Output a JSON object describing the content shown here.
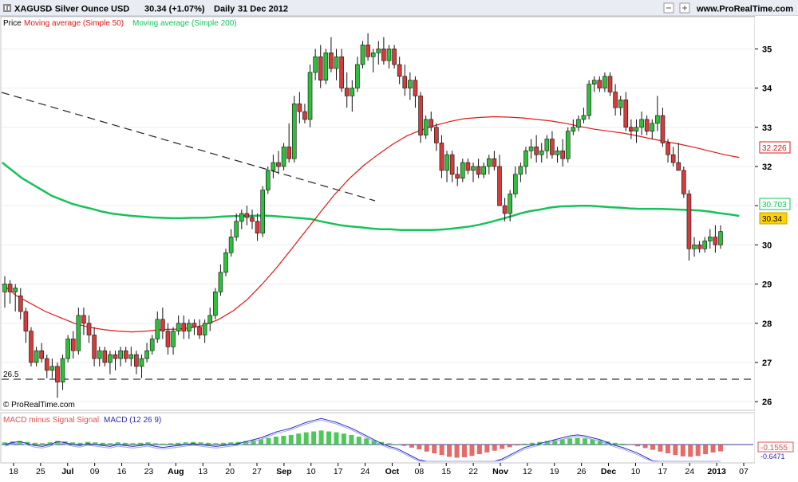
{
  "header": {
    "symbol": "XAGUSD",
    "description": "- Silver Ounce USD",
    "last_change": "30.34 (+1.07%)",
    "period": "Daily",
    "date": "31 Dec 2012",
    "site": "www.ProRealTime.com"
  },
  "icons": [
    "zoom-icon",
    "minimize-icon",
    "maximize-icon",
    "close-icon"
  ],
  "legend": {
    "price": "Price",
    "ma50": "Moving average (Simple 50)",
    "ma200": "Moving average (Simple 200)"
  },
  "copyright": "© ProRealTime.com",
  "colors": {
    "ma50": "#e01818",
    "ma200": "#16c25a",
    "up_candle": "#2fbf3a",
    "down_candle": "#d43b3b",
    "macd_line": "#2a2ab8",
    "macd_hist_pos": "#2fbf3a",
    "macd_hist_neg": "#e05050",
    "price_tag": "#ffd200"
  },
  "price_labels": {
    "ma50": "32.226",
    "ma200": "30.703",
    "last": "30.34"
  },
  "macd": {
    "legend_hist": "MACD minus Signal Signal",
    "legend_macd": "MACD (12 26 9)",
    "value_hist": "-0.1555",
    "value_macd": "-0.6471"
  },
  "support_label": "26.5",
  "chart_data": {
    "type": "candlestick",
    "y_axis_ticks": [
      "35",
      "34",
      "33",
      "32",
      "31",
      "30",
      "29",
      "28",
      "27",
      "26"
    ],
    "ylim": [
      25.8,
      35.8
    ],
    "x_axis_labels": [
      "18",
      "25",
      "Jul",
      "09",
      "16",
      "23",
      "Aug",
      "13",
      "20",
      "27",
      "Sep",
      "10",
      "17",
      "24",
      "Oct",
      "08",
      "15",
      "22",
      "Nov",
      "12",
      "19",
      "26",
      "Dec",
      "10",
      "17",
      "24",
      "2013",
      "07"
    ],
    "x_axis_bold": [
      "Jul",
      "Aug",
      "Sep",
      "Oct",
      "Nov",
      "Dec",
      "2013"
    ],
    "candles": [
      {
        "o": 28.8,
        "h": 29.2,
        "l": 28.4,
        "c": 29.0
      },
      {
        "o": 29.0,
        "h": 29.1,
        "l": 28.5,
        "c": 28.8
      },
      {
        "o": 28.8,
        "h": 29.0,
        "l": 28.3,
        "c": 28.9
      },
      {
        "o": 28.7,
        "h": 28.9,
        "l": 28.1,
        "c": 28.3
      },
      {
        "o": 28.3,
        "h": 28.4,
        "l": 27.5,
        "c": 27.8
      },
      {
        "o": 27.8,
        "h": 27.9,
        "l": 26.9,
        "c": 27.0
      },
      {
        "o": 27.0,
        "h": 27.4,
        "l": 26.9,
        "c": 27.3
      },
      {
        "o": 27.3,
        "h": 27.5,
        "l": 27.0,
        "c": 27.1
      },
      {
        "o": 27.1,
        "h": 27.2,
        "l": 26.6,
        "c": 26.8
      },
      {
        "o": 26.8,
        "h": 27.1,
        "l": 26.6,
        "c": 26.9
      },
      {
        "o": 26.9,
        "h": 27.0,
        "l": 26.1,
        "c": 26.5
      },
      {
        "o": 26.5,
        "h": 27.2,
        "l": 26.3,
        "c": 27.1
      },
      {
        "o": 27.1,
        "h": 27.7,
        "l": 27.0,
        "c": 27.6
      },
      {
        "o": 27.6,
        "h": 27.8,
        "l": 27.1,
        "c": 27.3
      },
      {
        "o": 27.3,
        "h": 28.4,
        "l": 27.2,
        "c": 28.2
      },
      {
        "o": 28.2,
        "h": 28.4,
        "l": 27.7,
        "c": 28.0
      },
      {
        "o": 28.0,
        "h": 28.2,
        "l": 27.5,
        "c": 27.7
      },
      {
        "o": 27.7,
        "h": 27.9,
        "l": 26.9,
        "c": 27.1
      },
      {
        "o": 27.1,
        "h": 27.4,
        "l": 26.9,
        "c": 27.3
      },
      {
        "o": 27.3,
        "h": 27.4,
        "l": 26.9,
        "c": 27.0
      },
      {
        "o": 27.0,
        "h": 27.3,
        "l": 26.7,
        "c": 27.2
      },
      {
        "o": 27.2,
        "h": 27.3,
        "l": 26.8,
        "c": 27.1
      },
      {
        "o": 27.1,
        "h": 27.4,
        "l": 26.9,
        "c": 27.3
      },
      {
        "o": 27.3,
        "h": 27.4,
        "l": 27.0,
        "c": 27.1
      },
      {
        "o": 27.1,
        "h": 27.4,
        "l": 26.9,
        "c": 27.2
      },
      {
        "o": 27.2,
        "h": 27.3,
        "l": 26.7,
        "c": 26.9
      },
      {
        "o": 26.9,
        "h": 27.2,
        "l": 26.6,
        "c": 27.1
      },
      {
        "o": 27.1,
        "h": 27.5,
        "l": 27.0,
        "c": 27.3
      },
      {
        "o": 27.3,
        "h": 27.7,
        "l": 27.2,
        "c": 27.6
      },
      {
        "o": 27.6,
        "h": 28.3,
        "l": 27.5,
        "c": 28.1
      },
      {
        "o": 28.1,
        "h": 28.4,
        "l": 27.6,
        "c": 27.8
      },
      {
        "o": 27.8,
        "h": 28.0,
        "l": 27.2,
        "c": 27.4
      },
      {
        "o": 27.4,
        "h": 27.9,
        "l": 27.2,
        "c": 27.8
      },
      {
        "o": 27.8,
        "h": 28.2,
        "l": 27.7,
        "c": 28.0
      },
      {
        "o": 28.0,
        "h": 28.2,
        "l": 27.6,
        "c": 27.8
      },
      {
        "o": 27.8,
        "h": 28.1,
        "l": 27.6,
        "c": 28.0
      },
      {
        "o": 28.0,
        "h": 28.1,
        "l": 27.7,
        "c": 27.9
      },
      {
        "o": 27.9,
        "h": 28.1,
        "l": 27.6,
        "c": 27.7
      },
      {
        "o": 27.7,
        "h": 28.1,
        "l": 27.5,
        "c": 28.0
      },
      {
        "o": 28.0,
        "h": 28.4,
        "l": 27.8,
        "c": 28.2
      },
      {
        "o": 28.2,
        "h": 28.9,
        "l": 28.1,
        "c": 28.8
      },
      {
        "o": 28.8,
        "h": 29.5,
        "l": 28.7,
        "c": 29.3
      },
      {
        "o": 29.3,
        "h": 29.9,
        "l": 29.2,
        "c": 29.8
      },
      {
        "o": 29.8,
        "h": 30.4,
        "l": 29.7,
        "c": 30.2
      },
      {
        "o": 30.2,
        "h": 30.8,
        "l": 30.1,
        "c": 30.6
      },
      {
        "o": 30.6,
        "h": 30.9,
        "l": 30.4,
        "c": 30.8
      },
      {
        "o": 30.8,
        "h": 31.0,
        "l": 30.5,
        "c": 30.7
      },
      {
        "o": 30.7,
        "h": 30.9,
        "l": 30.4,
        "c": 30.6
      },
      {
        "o": 30.6,
        "h": 30.8,
        "l": 30.1,
        "c": 30.3
      },
      {
        "o": 30.3,
        "h": 31.5,
        "l": 30.2,
        "c": 31.4
      },
      {
        "o": 31.4,
        "h": 32.0,
        "l": 31.3,
        "c": 31.9
      },
      {
        "o": 31.9,
        "h": 32.3,
        "l": 31.7,
        "c": 32.1
      },
      {
        "o": 32.1,
        "h": 32.4,
        "l": 31.8,
        "c": 32.0
      },
      {
        "o": 32.0,
        "h": 32.6,
        "l": 31.9,
        "c": 32.5
      },
      {
        "o": 32.5,
        "h": 33.1,
        "l": 32.1,
        "c": 32.2
      },
      {
        "o": 32.2,
        "h": 33.8,
        "l": 32.1,
        "c": 33.6
      },
      {
        "o": 33.6,
        "h": 33.9,
        "l": 33.1,
        "c": 33.4
      },
      {
        "o": 33.4,
        "h": 33.6,
        "l": 33.1,
        "c": 33.2
      },
      {
        "o": 33.2,
        "h": 34.6,
        "l": 33.0,
        "c": 34.4
      },
      {
        "o": 34.4,
        "h": 35.0,
        "l": 34.2,
        "c": 34.8
      },
      {
        "o": 34.8,
        "h": 35.1,
        "l": 34.0,
        "c": 34.2
      },
      {
        "o": 34.2,
        "h": 35.0,
        "l": 34.1,
        "c": 34.9
      },
      {
        "o": 34.9,
        "h": 35.3,
        "l": 34.4,
        "c": 34.5
      },
      {
        "o": 34.5,
        "h": 35.0,
        "l": 34.2,
        "c": 34.8
      },
      {
        "o": 34.8,
        "h": 35.0,
        "l": 33.9,
        "c": 34.0
      },
      {
        "o": 34.0,
        "h": 34.4,
        "l": 33.5,
        "c": 33.8
      },
      {
        "o": 33.8,
        "h": 34.2,
        "l": 33.4,
        "c": 34.0
      },
      {
        "o": 34.0,
        "h": 34.8,
        "l": 33.9,
        "c": 34.6
      },
      {
        "o": 34.6,
        "h": 35.2,
        "l": 34.5,
        "c": 35.1
      },
      {
        "o": 35.1,
        "h": 35.4,
        "l": 34.7,
        "c": 34.8
      },
      {
        "o": 34.8,
        "h": 35.0,
        "l": 34.4,
        "c": 34.9
      },
      {
        "o": 34.9,
        "h": 35.2,
        "l": 34.6,
        "c": 35.0
      },
      {
        "o": 35.0,
        "h": 35.3,
        "l": 34.6,
        "c": 34.7
      },
      {
        "o": 34.7,
        "h": 35.1,
        "l": 34.5,
        "c": 35.0
      },
      {
        "o": 35.0,
        "h": 35.1,
        "l": 34.5,
        "c": 34.6
      },
      {
        "o": 34.6,
        "h": 34.8,
        "l": 34.1,
        "c": 34.3
      },
      {
        "o": 34.3,
        "h": 34.6,
        "l": 33.8,
        "c": 34.0
      },
      {
        "o": 34.0,
        "h": 34.4,
        "l": 33.7,
        "c": 34.2
      },
      {
        "o": 34.2,
        "h": 34.3,
        "l": 33.5,
        "c": 33.8
      },
      {
        "o": 33.8,
        "h": 33.9,
        "l": 32.6,
        "c": 32.8
      },
      {
        "o": 32.8,
        "h": 33.3,
        "l": 32.7,
        "c": 33.2
      },
      {
        "o": 33.2,
        "h": 33.4,
        "l": 32.9,
        "c": 33.0
      },
      {
        "o": 33.0,
        "h": 33.1,
        "l": 32.4,
        "c": 32.6
      },
      {
        "o": 32.6,
        "h": 32.8,
        "l": 31.7,
        "c": 31.9
      },
      {
        "o": 31.9,
        "h": 32.4,
        "l": 31.6,
        "c": 32.3
      },
      {
        "o": 32.3,
        "h": 32.4,
        "l": 31.6,
        "c": 31.8
      },
      {
        "o": 31.8,
        "h": 32.0,
        "l": 31.5,
        "c": 31.7
      },
      {
        "o": 31.7,
        "h": 32.2,
        "l": 31.6,
        "c": 32.1
      },
      {
        "o": 32.1,
        "h": 32.2,
        "l": 31.8,
        "c": 31.9
      },
      {
        "o": 31.9,
        "h": 32.1,
        "l": 31.6,
        "c": 32.0
      },
      {
        "o": 32.0,
        "h": 32.2,
        "l": 31.7,
        "c": 31.8
      },
      {
        "o": 31.8,
        "h": 32.1,
        "l": 31.7,
        "c": 32.0
      },
      {
        "o": 32.0,
        "h": 32.3,
        "l": 31.8,
        "c": 32.2
      },
      {
        "o": 32.2,
        "h": 32.4,
        "l": 31.9,
        "c": 32.0
      },
      {
        "o": 32.0,
        "h": 32.3,
        "l": 31.0,
        "c": 31.0
      },
      {
        "o": 31.0,
        "h": 31.2,
        "l": 30.6,
        "c": 30.8
      },
      {
        "o": 30.8,
        "h": 31.4,
        "l": 30.6,
        "c": 31.3
      },
      {
        "o": 31.3,
        "h": 32.0,
        "l": 31.2,
        "c": 31.8
      },
      {
        "o": 31.8,
        "h": 32.1,
        "l": 31.6,
        "c": 32.0
      },
      {
        "o": 32.0,
        "h": 32.5,
        "l": 31.8,
        "c": 32.4
      },
      {
        "o": 32.4,
        "h": 32.7,
        "l": 32.2,
        "c": 32.5
      },
      {
        "o": 32.5,
        "h": 32.8,
        "l": 32.1,
        "c": 32.3
      },
      {
        "o": 32.3,
        "h": 32.6,
        "l": 32.1,
        "c": 32.4
      },
      {
        "o": 32.4,
        "h": 32.8,
        "l": 32.2,
        "c": 32.7
      },
      {
        "o": 32.7,
        "h": 32.9,
        "l": 32.2,
        "c": 32.3
      },
      {
        "o": 32.3,
        "h": 32.5,
        "l": 32.1,
        "c": 32.4
      },
      {
        "o": 32.4,
        "h": 32.7,
        "l": 32.0,
        "c": 32.2
      },
      {
        "o": 32.2,
        "h": 33.0,
        "l": 32.1,
        "c": 32.9
      },
      {
        "o": 32.9,
        "h": 33.2,
        "l": 32.8,
        "c": 33.0
      },
      {
        "o": 33.0,
        "h": 33.3,
        "l": 32.9,
        "c": 33.2
      },
      {
        "o": 33.2,
        "h": 33.5,
        "l": 33.1,
        "c": 33.3
      },
      {
        "o": 33.3,
        "h": 34.2,
        "l": 33.2,
        "c": 34.1
      },
      {
        "o": 34.1,
        "h": 34.3,
        "l": 33.9,
        "c": 34.2
      },
      {
        "o": 34.2,
        "h": 34.3,
        "l": 33.9,
        "c": 34.0
      },
      {
        "o": 34.0,
        "h": 34.4,
        "l": 33.9,
        "c": 34.3
      },
      {
        "o": 34.3,
        "h": 34.4,
        "l": 33.8,
        "c": 33.9
      },
      {
        "o": 33.9,
        "h": 34.1,
        "l": 33.3,
        "c": 33.5
      },
      {
        "o": 33.5,
        "h": 33.8,
        "l": 33.3,
        "c": 33.7
      },
      {
        "o": 33.7,
        "h": 33.9,
        "l": 32.9,
        "c": 33.0
      },
      {
        "o": 33.0,
        "h": 33.2,
        "l": 32.7,
        "c": 32.9
      },
      {
        "o": 32.9,
        "h": 33.2,
        "l": 32.6,
        "c": 33.0
      },
      {
        "o": 33.0,
        "h": 33.4,
        "l": 32.8,
        "c": 33.2
      },
      {
        "o": 33.2,
        "h": 33.3,
        "l": 32.8,
        "c": 32.9
      },
      {
        "o": 32.9,
        "h": 33.2,
        "l": 32.7,
        "c": 33.1
      },
      {
        "o": 33.1,
        "h": 33.8,
        "l": 32.9,
        "c": 33.3
      },
      {
        "o": 33.3,
        "h": 33.5,
        "l": 32.5,
        "c": 32.6
      },
      {
        "o": 32.6,
        "h": 32.7,
        "l": 32.1,
        "c": 32.3
      },
      {
        "o": 32.3,
        "h": 32.5,
        "l": 32.0,
        "c": 32.1
      },
      {
        "o": 32.1,
        "h": 32.6,
        "l": 31.9,
        "c": 31.9
      },
      {
        "o": 31.9,
        "h": 32.0,
        "l": 31.2,
        "c": 31.3
      },
      {
        "o": 31.3,
        "h": 31.4,
        "l": 29.6,
        "c": 29.9
      },
      {
        "o": 29.9,
        "h": 30.2,
        "l": 29.7,
        "c": 30.0
      },
      {
        "o": 30.0,
        "h": 30.1,
        "l": 29.8,
        "c": 29.9
      },
      {
        "o": 29.9,
        "h": 30.2,
        "l": 29.8,
        "c": 30.1
      },
      {
        "o": 30.1,
        "h": 30.4,
        "l": 29.9,
        "c": 30.2
      },
      {
        "o": 30.2,
        "h": 30.5,
        "l": 29.8,
        "c": 30.0
      },
      {
        "o": 30.0,
        "h": 30.5,
        "l": 29.9,
        "c": 30.34
      }
    ],
    "ma200": [
      32.1,
      31.9,
      31.7,
      31.55,
      31.4,
      31.25,
      31.15,
      31.05,
      30.98,
      30.92,
      30.85,
      30.8,
      30.77,
      30.74,
      30.72,
      30.7,
      30.69,
      30.68,
      30.68,
      30.69,
      30.69,
      30.7,
      30.72,
      30.73,
      30.74,
      30.74,
      30.75,
      30.74,
      30.72,
      30.7,
      30.68,
      30.66,
      30.6,
      30.55,
      30.5,
      30.47,
      30.45,
      30.42,
      30.4,
      30.4,
      30.38,
      30.38,
      30.38,
      30.38,
      30.39,
      30.41,
      30.44,
      30.47,
      30.52,
      30.58,
      30.65,
      30.72,
      30.8,
      30.86,
      30.9,
      30.95,
      30.98,
      30.99,
      31.0,
      31.0,
      30.98,
      30.96,
      30.95,
      30.93,
      30.92,
      30.92,
      30.92,
      30.91,
      30.9,
      30.89,
      30.88,
      30.85,
      30.81,
      30.78,
      30.74
    ],
    "ma50": [
      29.0,
      28.7,
      28.5,
      28.3,
      28.15,
      28.0,
      27.9,
      27.84,
      27.8,
      27.78,
      27.8,
      27.84,
      27.85,
      27.88,
      27.95,
      28.1,
      28.32,
      28.62,
      29.0,
      29.42,
      29.88,
      30.35,
      30.82,
      31.28,
      31.68,
      32.02,
      32.3,
      32.56,
      32.78,
      32.93,
      33.05,
      33.15,
      33.22,
      33.25,
      33.27,
      33.26,
      33.24,
      33.2,
      33.16,
      33.1,
      33.02,
      32.95,
      32.9,
      32.85,
      32.78,
      32.7,
      32.63,
      32.56,
      32.48,
      32.39,
      32.3,
      32.23
    ],
    "macd_hist": [
      0.05,
      0.07,
      0.08,
      0.06,
      0.04,
      0.03,
      0.05,
      0.08,
      0.07,
      0.05,
      0.04,
      0.06,
      0.05,
      0.04,
      0.03,
      0.05,
      0.04,
      0.03,
      0.04,
      0.05,
      0.03,
      0.02,
      0.03,
      0.04,
      0.05,
      0.06,
      0.05,
      0.04,
      0.03,
      0.04,
      0.05,
      0.06,
      0.08,
      0.1,
      0.12,
      0.15,
      0.18,
      0.2,
      0.22,
      0.25,
      0.28,
      0.3,
      0.32,
      0.3,
      0.28,
      0.25,
      0.22,
      0.18,
      0.14,
      0.1,
      0.06,
      0.03,
      0.01,
      -0.03,
      -0.07,
      -0.11,
      -0.16,
      -0.2,
      -0.24,
      -0.28,
      -0.3,
      -0.29,
      -0.26,
      -0.22,
      -0.18,
      -0.14,
      -0.1,
      -0.06,
      -0.02,
      0.02,
      0.04,
      0.06,
      0.08,
      0.1,
      0.12,
      0.14,
      0.15,
      0.14,
      0.12,
      0.1,
      0.07,
      0.04,
      0.02,
      -0.01,
      -0.04,
      -0.08,
      -0.12,
      -0.16,
      -0.2,
      -0.24,
      -0.27,
      -0.28,
      -0.26,
      -0.22,
      -0.18,
      -0.1555
    ]
  }
}
